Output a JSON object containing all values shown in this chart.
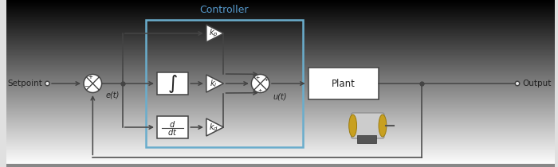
{
  "background_color": "#f0f0f0",
  "title": "Controller",
  "title_color": "#5599cc",
  "title_fontsize": 9,
  "setpoint_label": "Setpoint",
  "output_label": "Output",
  "et_label": "e(t)",
  "ut_label": "u(t)",
  "plant_label": "Plant",
  "controller_box_color": "#6aadcc",
  "block_edge_color": "#444444",
  "line_color": "#444444",
  "text_color": "#222222",
  "background_top": "#dcdcdc",
  "background_bottom": "#f8f8f8"
}
